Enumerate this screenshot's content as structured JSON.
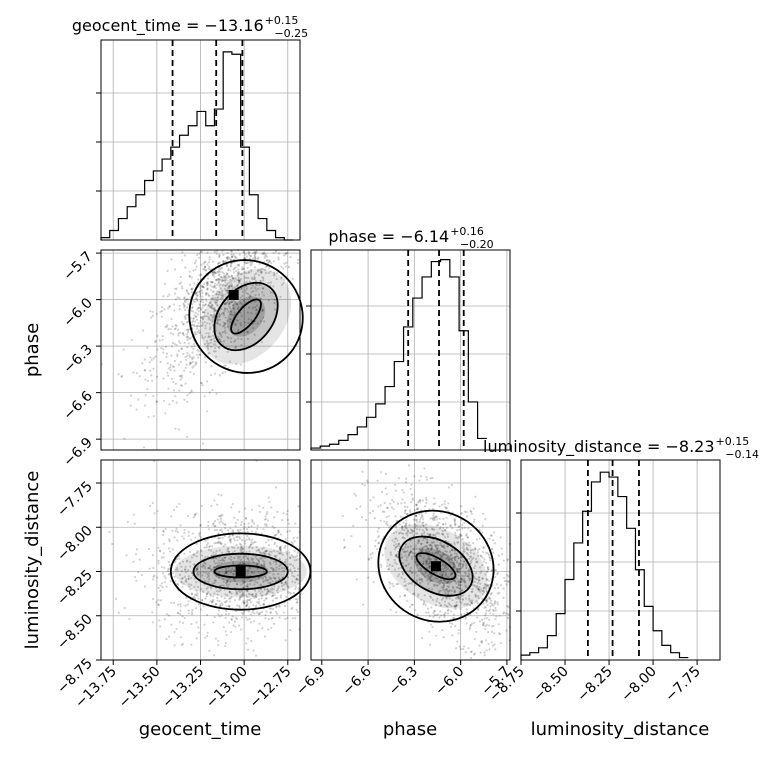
{
  "chart_data": {
    "type": "corner",
    "parameters": [
      "geocent_time",
      "phase",
      "luminosity_distance"
    ],
    "titles": [
      {
        "label": "geocent_time = ",
        "median": "−13.16",
        "plus": "+0.15",
        "minus": "−0.25"
      },
      {
        "label": "phase = ",
        "median": "−6.14",
        "plus": "+0.16",
        "minus": "−0.20"
      },
      {
        "label": "luminosity_distance = ",
        "median": "−8.23",
        "plus": "+0.15",
        "minus": "−0.14"
      }
    ],
    "xlabels": [
      "geocent_time",
      "phase",
      "luminosity_distance"
    ],
    "ylabels": [
      "",
      "phase",
      "luminosity_distance"
    ],
    "ranges": {
      "geocent_time": [
        -13.82,
        -12.68
      ],
      "phase": [
        -6.97,
        -5.68
      ],
      "luminosity_distance": [
        -8.75,
        -7.62
      ]
    },
    "ticks": {
      "geocent_time": {
        "values": [
          -13.75,
          -13.5,
          -13.25,
          -13.0,
          -12.75
        ],
        "labels": [
          "−13.75",
          "−13.50",
          "−13.25",
          "−13.00",
          "−12.75"
        ]
      },
      "phase": {
        "values": [
          -6.9,
          -6.6,
          -6.3,
          -6.0,
          -5.7
        ],
        "labels": [
          "−6.9",
          "−6.6",
          "−6.3",
          "−6.0",
          "−5.7"
        ]
      },
      "luminosity_distance": {
        "values": [
          -8.75,
          -8.5,
          -8.25,
          -8.0,
          -7.75
        ],
        "labels": [
          "−8.75",
          "−8.50",
          "−8.25",
          "−8.00",
          "−7.75"
        ]
      }
    },
    "quantiles": {
      "geocent_time": [
        -13.41,
        -13.16,
        -13.01
      ],
      "phase": [
        -6.34,
        -6.14,
        -5.98
      ],
      "luminosity_distance": [
        -8.37,
        -8.23,
        -8.08
      ]
    },
    "histograms": {
      "geocent_time": {
        "edges": [
          -13.82,
          -13.77,
          -13.72,
          -13.67,
          -13.62,
          -13.57,
          -13.52,
          -13.47,
          -13.42,
          -13.37,
          -13.32,
          -13.27,
          -13.22,
          -13.17,
          -13.12,
          -13.07,
          -13.02,
          -12.97,
          -12.92,
          -12.87,
          -12.82,
          -12.77,
          -12.72
        ],
        "counts": [
          1,
          4,
          9,
          14,
          19,
          25,
          29,
          34,
          39,
          44,
          48,
          54,
          48,
          55,
          79,
          78,
          39,
          19,
          9,
          4,
          1,
          0
        ]
      },
      "phase": {
        "edges": [
          -6.97,
          -6.91,
          -6.85,
          -6.79,
          -6.73,
          -6.67,
          -6.61,
          -6.55,
          -6.49,
          -6.43,
          -6.37,
          -6.31,
          -6.25,
          -6.19,
          -6.13,
          -6.07,
          -6.01,
          -5.95,
          -5.89,
          -5.83
        ],
        "counts": [
          1,
          2,
          3,
          5,
          8,
          12,
          17,
          24,
          33,
          46,
          64,
          79,
          90,
          98,
          99,
          90,
          62,
          25,
          6
        ]
      },
      "luminosity_distance": {
        "edges": [
          -8.75,
          -8.7,
          -8.65,
          -8.6,
          -8.55,
          -8.5,
          -8.45,
          -8.4,
          -8.35,
          -8.3,
          -8.25,
          -8.2,
          -8.15,
          -8.1,
          -8.05,
          -8.0,
          -7.95,
          -7.9,
          -7.85,
          -7.8
        ],
        "counts": [
          2,
          3,
          5,
          10,
          19,
          33,
          48,
          61,
          73,
          77,
          75,
          67,
          54,
          37,
          22,
          12,
          6,
          3,
          1
        ]
      }
    },
    "histogram_ymax": [
      84,
      104,
      82
    ],
    "correlations": [
      {
        "x": "geocent_time",
        "y": "phase",
        "slope": 2.2,
        "sx": 0.16,
        "sy": 0.24,
        "peak": [
          -13.06,
          -5.97
        ]
      },
      {
        "x": "geocent_time",
        "y": "luminosity_distance",
        "slope": 0.0,
        "sx": 0.2,
        "sy": 0.14,
        "peak": [
          -13.02,
          -8.25
        ]
      },
      {
        "x": "phase",
        "y": "luminosity_distance",
        "slope": -1.05,
        "sx": 0.19,
        "sy": 0.2,
        "peak": [
          -6.16,
          -8.22
        ]
      }
    ],
    "grid": true,
    "colors": {
      "ink": "#000000",
      "grid": "#b0b0b0",
      "density": "#808080"
    }
  }
}
